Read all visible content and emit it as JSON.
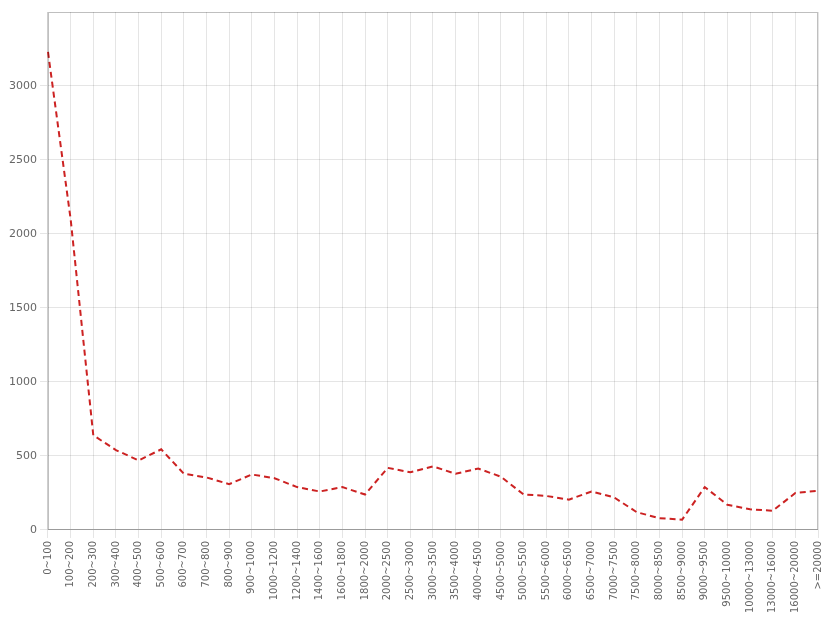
{
  "chart_data": {
    "type": "line",
    "categories": [
      "0~100",
      "100~200",
      "200~300",
      "300~400",
      "400~500",
      "500~600",
      "600~700",
      "700~800",
      "800~900",
      "900~1000",
      "1000~1200",
      "1200~1400",
      "1400~1600",
      "1600~1800",
      "1800~2000",
      "2000~2500",
      "2500~3000",
      "3000~3500",
      "3500~4000",
      "4000~4500",
      "4500~5000",
      "5000~5500",
      "5500~6000",
      "6000~6500",
      "6500~7000",
      "7000~7500",
      "7500~8000",
      "8000~8500",
      "8500~9000",
      "9000~9500",
      "9500~10000",
      "10000~13000",
      "13000~16000",
      "16000~20000",
      ">=20000"
    ],
    "values": [
      3230,
      2100,
      640,
      540,
      470,
      545,
      380,
      355,
      310,
      375,
      350,
      290,
      260,
      290,
      240,
      420,
      390,
      430,
      380,
      415,
      360,
      240,
      230,
      205,
      260,
      220,
      120,
      80,
      70,
      290,
      170,
      140,
      130,
      250,
      265
    ],
    "color": "#cc2222",
    "line_style": "dashed",
    "ylim": [
      0,
      3500
    ],
    "yticks": [
      0,
      500,
      1000,
      1500,
      2000,
      2500,
      3000
    ],
    "grid": true
  }
}
